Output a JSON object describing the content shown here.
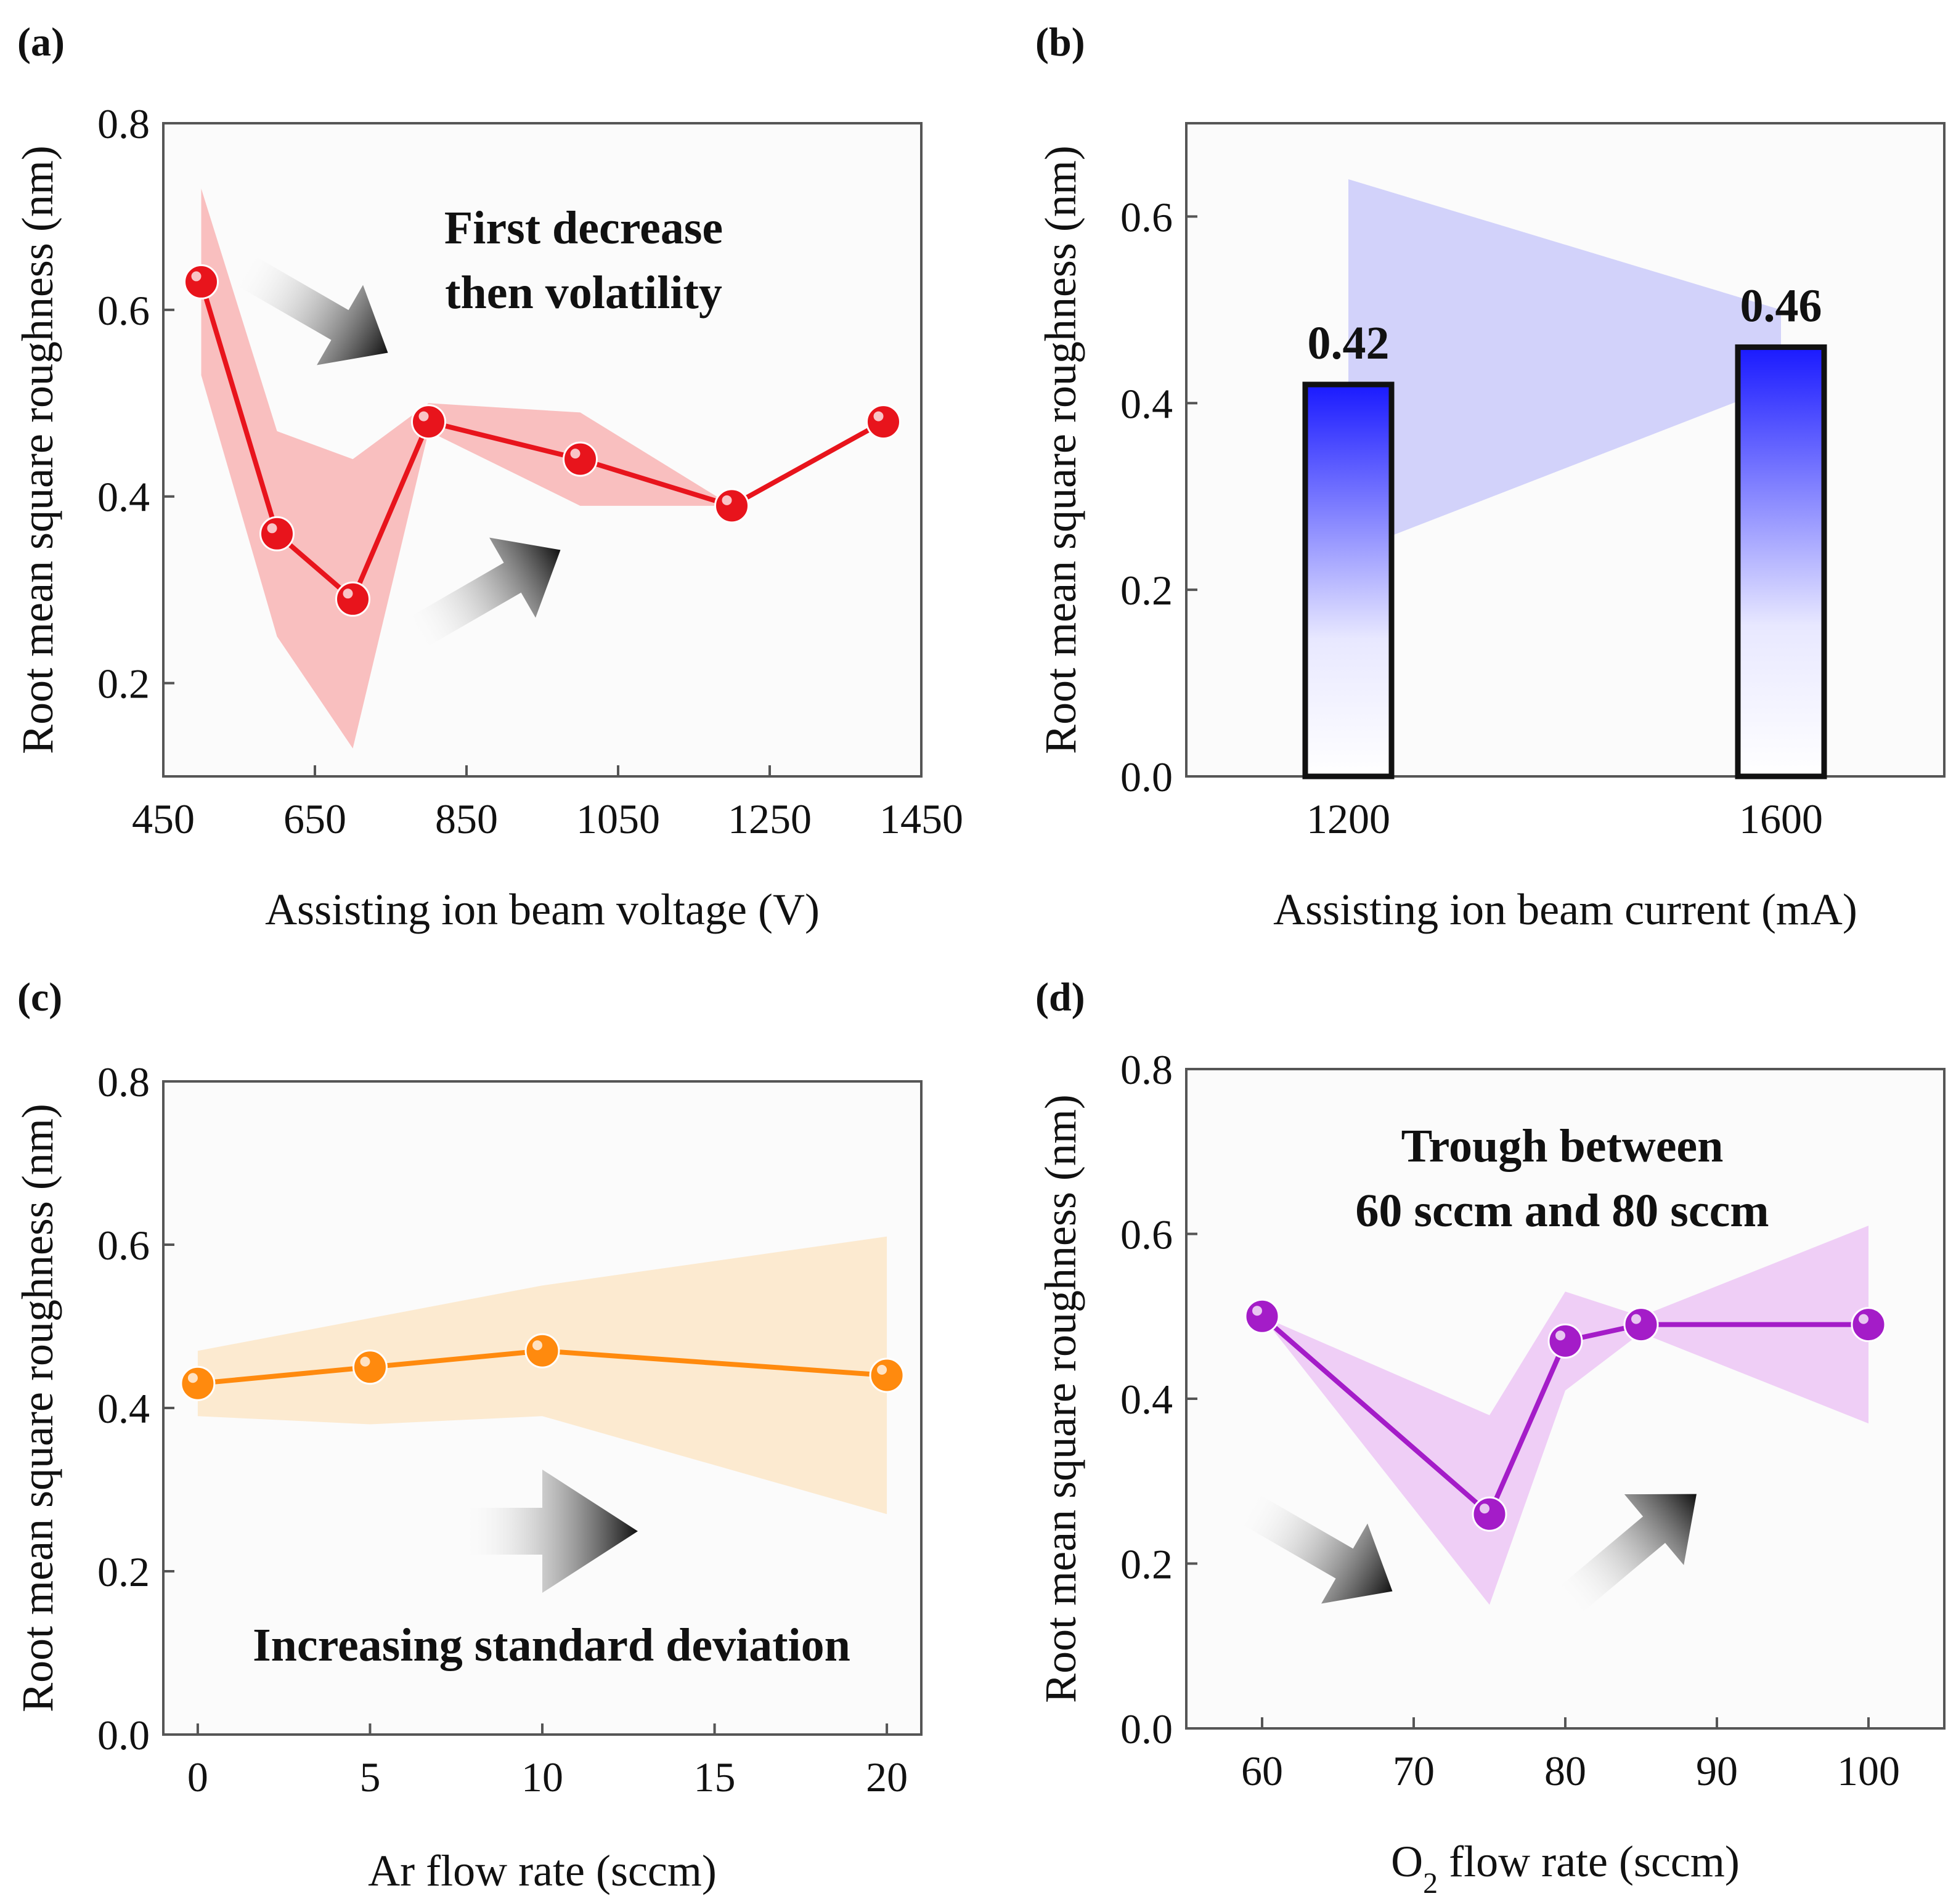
{
  "chart_data": [
    {
      "panel": "(a)",
      "type": "line",
      "color": "#e8141c",
      "band_color": "#f8b4b4",
      "x": [
        500,
        600,
        700,
        800,
        1000,
        1200,
        1400
      ],
      "y": [
        0.63,
        0.36,
        0.29,
        0.48,
        0.44,
        0.39,
        0.48
      ],
      "band_upper": [
        0.73,
        0.47,
        0.44,
        0.5,
        0.49,
        0.39,
        0.48
      ],
      "band_lower": [
        0.53,
        0.25,
        0.13,
        0.47,
        0.39,
        0.39,
        0.48
      ],
      "xlim": [
        450,
        1450
      ],
      "ylim": [
        0.1,
        0.8
      ],
      "xticks": [
        450,
        650,
        850,
        1050,
        1250,
        1450
      ],
      "yticks": [
        0.2,
        0.4,
        0.6,
        0.8
      ],
      "xtick_labels": [
        "450",
        "650",
        "850",
        "1050",
        "1250",
        "1450"
      ],
      "ytick_labels": [
        "0.2",
        "0.4",
        "0.6",
        "0.8"
      ],
      "xlabel": "Assisting ion beam voltage (V)",
      "ylabel": "Root mean square roughness (nm)",
      "annotation_lines": [
        "First decrease",
        "then volatility"
      ],
      "arrows": [
        "down-right",
        "up-right"
      ]
    },
    {
      "panel": "(b)",
      "type": "bar",
      "color": "#1a1aff",
      "band_color": "#d2d2fa",
      "categories": [
        "1200",
        "1600"
      ],
      "values": [
        0.42,
        0.46
      ],
      "value_labels": [
        "0.42",
        "0.46"
      ],
      "band_upper": [
        0.64,
        0.5
      ],
      "band_lower": [
        0.24,
        0.42
      ],
      "ylim": [
        0.0,
        0.7
      ],
      "yticks": [
        0.0,
        0.2,
        0.4,
        0.6
      ],
      "ytick_labels": [
        "0.0",
        "0.2",
        "0.4",
        "0.6"
      ],
      "xlabel": "Assisting ion beam current (mA)",
      "ylabel": "Root mean square roughness (nm)"
    },
    {
      "panel": "(c)",
      "type": "line",
      "color": "#ff8a0e",
      "band_color": "#fce6c8",
      "x": [
        0,
        5,
        10,
        20
      ],
      "y": [
        0.43,
        0.45,
        0.47,
        0.44
      ],
      "band_upper": [
        0.47,
        0.51,
        0.55,
        0.61
      ],
      "band_lower": [
        0.39,
        0.38,
        0.39,
        0.27
      ],
      "xlim": [
        -1,
        21
      ],
      "ylim": [
        0.0,
        0.8
      ],
      "xticks": [
        0,
        5,
        10,
        15,
        20
      ],
      "yticks": [
        0.0,
        0.2,
        0.4,
        0.6,
        0.8
      ],
      "xtick_labels": [
        "0",
        "5",
        "10",
        "15",
        "20"
      ],
      "ytick_labels": [
        "0.0",
        "0.2",
        "0.4",
        "0.6",
        "0.8"
      ],
      "xlabel": "Ar flow rate (sccm)",
      "ylabel": "Root mean square roughness (nm)",
      "annotation_lines": [
        "Increasing standard deviation"
      ],
      "arrows": [
        "right"
      ]
    },
    {
      "panel": "(d)",
      "type": "line",
      "color": "#a41cc8",
      "band_color": "#ecc6f4",
      "x": [
        60,
        75,
        80,
        85,
        100
      ],
      "y": [
        0.5,
        0.26,
        0.47,
        0.49,
        0.49
      ],
      "band_upper": [
        0.5,
        0.38,
        0.53,
        0.5,
        0.61
      ],
      "band_lower": [
        0.5,
        0.15,
        0.41,
        0.48,
        0.37
      ],
      "xlim": [
        55,
        105
      ],
      "ylim": [
        0.0,
        0.8
      ],
      "xticks": [
        60,
        70,
        80,
        90,
        100
      ],
      "yticks": [
        0.0,
        0.2,
        0.4,
        0.6,
        0.8
      ],
      "xtick_labels": [
        "60",
        "70",
        "80",
        "90",
        "100"
      ],
      "ytick_labels": [
        "0.0",
        "0.2",
        "0.4",
        "0.6",
        "0.8"
      ],
      "xlabel_main": "O",
      "xlabel_sub": "2",
      "xlabel_rest": " flow rate (sccm)",
      "ylabel": "Root mean square roughness (nm)",
      "annotation_lines": [
        "Trough between",
        "60 sccm and 80 sccm"
      ],
      "arrows": [
        "down-right",
        "up-right"
      ]
    }
  ]
}
